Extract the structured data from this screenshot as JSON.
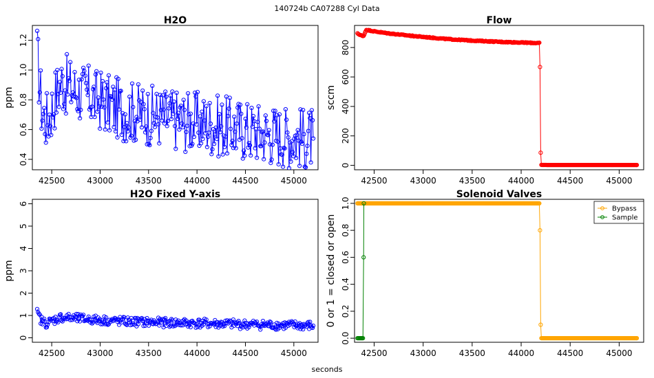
{
  "page_title": "140724b    CA07288   Cyl Data",
  "x_axis_label": "seconds",
  "chart_data": [
    {
      "id": "h2o",
      "type": "line",
      "title": "H2O",
      "xlabel": "",
      "ylabel": "ppm",
      "xlim": [
        42300,
        45250
      ],
      "ylim": [
        0.33,
        1.3
      ],
      "xticks": [
        42500,
        43000,
        43500,
        44000,
        44500,
        45000
      ],
      "yticks": [
        0.4,
        0.6,
        0.8,
        1.0,
        1.2
      ],
      "ytick_labels": [
        "0.4",
        "0.6",
        "0.8",
        "1.0",
        "1.2"
      ],
      "color": "#0000ff",
      "series": [
        {
          "x": [
            42350,
            42400,
            42450,
            42500,
            42550,
            42600,
            42650,
            42700,
            42750,
            42800,
            42850,
            42900,
            42950,
            43000,
            43050,
            43100,
            43150,
            43200,
            43250,
            43300,
            43350,
            43400,
            43450,
            43500,
            43550,
            43600,
            43650,
            43700,
            43750,
            43800,
            43850,
            43900,
            43950,
            44000,
            44050,
            44100,
            44150,
            44200,
            44250,
            44300,
            44350,
            44400,
            44450,
            44500,
            44550,
            44600,
            44650,
            44700,
            44750,
            44800,
            44850,
            44900,
            44950,
            45000,
            45050,
            45100,
            45150,
            45200
          ],
          "values": [
            1.1,
            0.72,
            0.66,
            0.74,
            0.85,
            0.92,
            0.9,
            0.88,
            0.86,
            0.85,
            0.83,
            0.83,
            0.8,
            0.8,
            0.78,
            0.76,
            0.75,
            0.74,
            0.73,
            0.72,
            0.72,
            0.71,
            0.7,
            0.7,
            0.69,
            0.69,
            0.68,
            0.68,
            0.67,
            0.67,
            0.66,
            0.66,
            0.65,
            0.65,
            0.64,
            0.64,
            0.63,
            0.63,
            0.62,
            0.62,
            0.61,
            0.61,
            0.6,
            0.6,
            0.59,
            0.59,
            0.58,
            0.58,
            0.57,
            0.57,
            0.56,
            0.56,
            0.55,
            0.55,
            0.55,
            0.54,
            0.54,
            0.54
          ]
        }
      ]
    },
    {
      "id": "flow",
      "type": "line",
      "title": "Flow",
      "xlabel": "",
      "ylabel": "sccm",
      "xlim": [
        42300,
        45250
      ],
      "ylim": [
        -30,
        950
      ],
      "xticks": [
        42500,
        43000,
        43500,
        44000,
        44500,
        45000
      ],
      "yticks": [
        0,
        200,
        400,
        600,
        800
      ],
      "ytick_labels": [
        "0",
        "200",
        "400",
        "600",
        "800"
      ],
      "color": "#ff0000",
      "series": [
        {
          "x": [
            42330,
            42360,
            42390,
            42420,
            42500,
            42600,
            42700,
            42800,
            42900,
            43000,
            43100,
            43200,
            43300,
            43400,
            43500,
            43600,
            43700,
            43800,
            43900,
            44000,
            44100,
            44190,
            44200,
            44300,
            44400,
            44500,
            44600,
            44700,
            44800,
            44900,
            45000,
            45100,
            45180
          ],
          "values": [
            895,
            885,
            875,
            920,
            910,
            900,
            892,
            885,
            878,
            872,
            866,
            860,
            855,
            851,
            847,
            844,
            841,
            838,
            836,
            834,
            832,
            830,
            3,
            2,
            2,
            2,
            2,
            2,
            2,
            2,
            2,
            2,
            2
          ]
        }
      ]
    },
    {
      "id": "h2o_fixed",
      "type": "line",
      "title": "H2O Fixed Y-axis",
      "xlabel": "",
      "ylabel": "ppm",
      "xlim": [
        42300,
        45250
      ],
      "ylim": [
        -0.2,
        6.2
      ],
      "xticks": [
        42500,
        43000,
        43500,
        44000,
        44500,
        45000
      ],
      "yticks": [
        0,
        1,
        2,
        3,
        4,
        5,
        6
      ],
      "ytick_labels": [
        "0",
        "1",
        "2",
        "3",
        "4",
        "5",
        "6"
      ],
      "color": "#0000ff",
      "series": [
        {
          "x": [
            42350,
            42400,
            42450,
            42500,
            42550,
            42600,
            42650,
            42700,
            42750,
            42800,
            42850,
            42900,
            42950,
            43000,
            43050,
            43100,
            43150,
            43200,
            43250,
            43300,
            43350,
            43400,
            43450,
            43500,
            43550,
            43600,
            43650,
            43700,
            43750,
            43800,
            43850,
            43900,
            43950,
            44000,
            44050,
            44100,
            44150,
            44200,
            44250,
            44300,
            44350,
            44400,
            44450,
            44500,
            44550,
            44600,
            44650,
            44700,
            44750,
            44800,
            44850,
            44900,
            44950,
            45000,
            45050,
            45100,
            45150,
            45200
          ],
          "values": [
            1.1,
            0.72,
            0.66,
            0.74,
            0.85,
            0.92,
            0.9,
            0.88,
            0.86,
            0.85,
            0.83,
            0.83,
            0.8,
            0.8,
            0.78,
            0.76,
            0.75,
            0.74,
            0.73,
            0.72,
            0.72,
            0.71,
            0.7,
            0.7,
            0.69,
            0.69,
            0.68,
            0.68,
            0.67,
            0.67,
            0.66,
            0.66,
            0.65,
            0.65,
            0.64,
            0.64,
            0.63,
            0.63,
            0.62,
            0.62,
            0.61,
            0.61,
            0.6,
            0.6,
            0.59,
            0.59,
            0.58,
            0.58,
            0.57,
            0.57,
            0.56,
            0.56,
            0.55,
            0.55,
            0.55,
            0.54,
            0.54,
            0.54
          ]
        }
      ]
    },
    {
      "id": "solenoid",
      "type": "line",
      "title": "Solenoid Valves",
      "xlabel": "",
      "ylabel": "0 or 1 = closed or open",
      "xlim": [
        42300,
        45250
      ],
      "ylim": [
        -0.03,
        1.03
      ],
      "xticks": [
        42500,
        43000,
        43500,
        44000,
        44500,
        45000
      ],
      "yticks": [
        0.0,
        0.2,
        0.4,
        0.6,
        0.8,
        1.0
      ],
      "ytick_labels": [
        "0.0",
        "0.2",
        "0.4",
        "0.6",
        "0.8",
        "1.0"
      ],
      "legend_position": "top-right",
      "series": [
        {
          "name": "Bypass",
          "color": "#ffa500",
          "x": [
            42330,
            42500,
            43000,
            43500,
            44000,
            44190,
            44200,
            44500,
            45000,
            45180
          ],
          "values": [
            1,
            1,
            1,
            1,
            1,
            1,
            0,
            0,
            0,
            0
          ]
        },
        {
          "name": "Sample",
          "color": "#008000",
          "x": [
            42330,
            42350,
            42370,
            42390,
            42395
          ],
          "values": [
            0,
            0,
            0,
            0,
            1
          ]
        }
      ]
    }
  ]
}
